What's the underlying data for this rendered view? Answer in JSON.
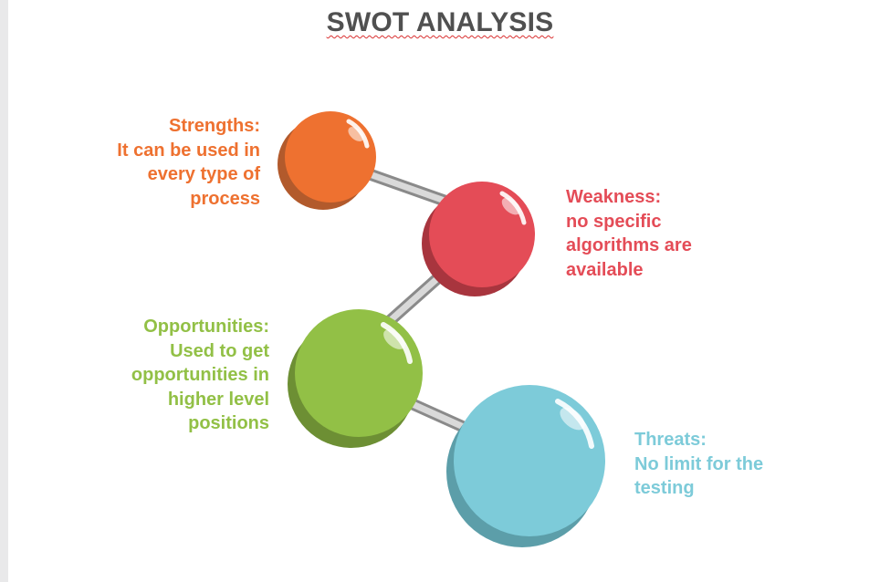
{
  "title": "SWOT ANALYSIS",
  "colors": {
    "title": "#505050",
    "strengths": "#ee7130",
    "weakness": "#e44c57",
    "opportunities": "#92c046",
    "threats": "#7dcbd9",
    "rod": "#b9b9b9"
  },
  "items": [
    {
      "key": "strengths",
      "heading": "Strengths:",
      "lines": [
        "It can be used in ",
        "every type of ",
        "process"
      ]
    },
    {
      "key": "weakness",
      "heading": "Weakness:",
      "lines": [
        "no specific",
        "algorithms are",
        "available"
      ]
    },
    {
      "key": "opportunities",
      "heading": "Opportunities:",
      "lines": [
        "Used to get ",
        "opportunities in ",
        "higher level ",
        "positions"
      ]
    },
    {
      "key": "threats",
      "heading": "Threats:",
      "lines": [
        "No limit for the",
        "testing"
      ]
    }
  ]
}
